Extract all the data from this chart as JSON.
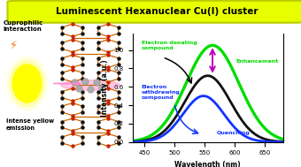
{
  "title": "Luminescent Hexanuclear Cu(I) cluster",
  "title_bg": "#e8ff00",
  "title_border": "#b8cc00",
  "xlabel": "Wavelength (nm)",
  "ylabel": "Intensity (a.u.)",
  "xlim": [
    430,
    680
  ],
  "ylim": [
    0,
    1.18
  ],
  "x_ticks": [
    450,
    500,
    550,
    600,
    650
  ],
  "black_peak": 555,
  "black_amplitude": 0.72,
  "black_sigma": 38,
  "green_peak": 563,
  "green_amplitude": 1.05,
  "green_sigma": 44,
  "blue_peak": 548,
  "blue_amplitude": 0.5,
  "blue_sigma": 34,
  "black_color": "#111111",
  "green_color": "#00dd00",
  "blue_color": "#1133ff",
  "arrow_color": "#bb00bb",
  "label_electron_donating": "Electron donating\ncompound",
  "label_electron_withdrawing": "Electron\nwithdrawing\ncompound",
  "label_enhancement": "Enhancement",
  "label_quenching": "Quenching",
  "label_cuprophilic": "Cuprophilic\ninteraction",
  "label_yellow_emission": "Intense yellow\nemission",
  "fig_bg": "#ffffff"
}
